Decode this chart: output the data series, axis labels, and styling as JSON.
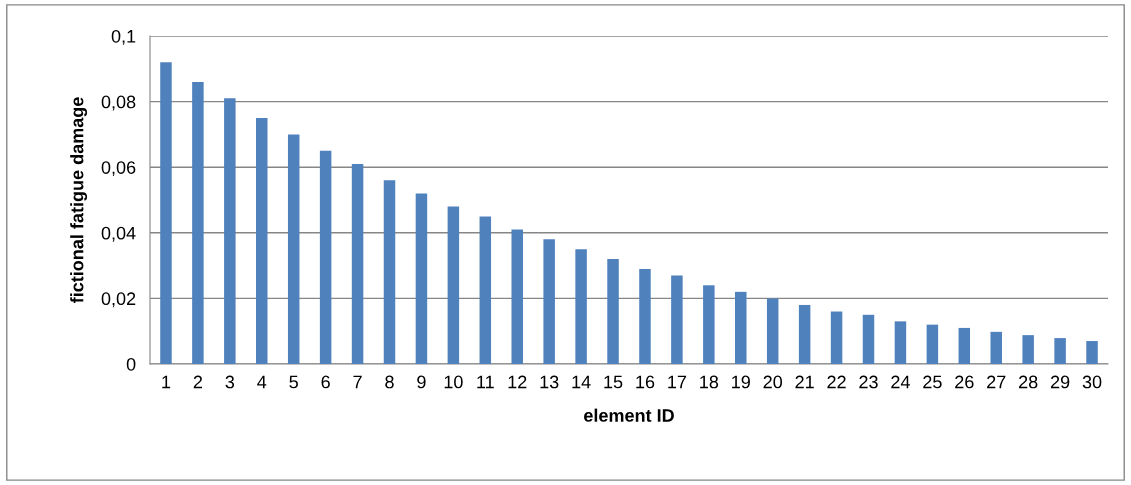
{
  "chart_data": {
    "type": "bar",
    "xlabel": "element ID",
    "ylabel": "fictional fatigue damage",
    "categories": [
      "1",
      "2",
      "3",
      "4",
      "5",
      "6",
      "7",
      "8",
      "9",
      "10",
      "11",
      "12",
      "13",
      "14",
      "15",
      "16",
      "17",
      "18",
      "19",
      "20",
      "21",
      "22",
      "23",
      "24",
      "25",
      "26",
      "27",
      "28",
      "29",
      "30"
    ],
    "series": [
      {
        "color": "#4f81bd",
        "values": [
          0.092,
          0.086,
          0.081,
          0.075,
          0.07,
          0.065,
          0.061,
          0.056,
          0.052,
          0.048,
          0.045,
          0.041,
          0.038,
          0.035,
          0.032,
          0.029,
          0.027,
          0.024,
          0.022,
          0.02,
          0.018,
          0.016,
          0.015,
          0.013,
          0.012,
          0.011,
          0.0098,
          0.0088,
          0.0079,
          0.007
        ]
      }
    ],
    "ylim": [
      0,
      0.1
    ],
    "yticks": [
      0,
      {
        "value": 0.02,
        "label": "0,02"
      },
      {
        "value": 0.04,
        "label": "0,04"
      },
      {
        "value": 0.06,
        "label": "0,06"
      },
      {
        "value": 0.08,
        "label": "0,08"
      },
      {
        "value": 0.1,
        "label": "0,1"
      }
    ],
    "grid": "y"
  }
}
